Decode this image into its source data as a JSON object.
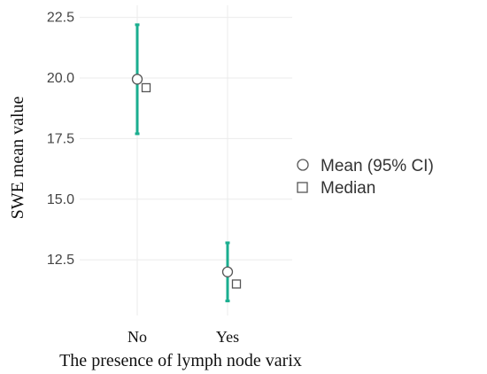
{
  "chart_data": {
    "type": "scatter",
    "xlabel": "The presence of lymph node varix",
    "ylabel": "SWE mean value",
    "categories": [
      "No",
      "Yes"
    ],
    "y_ticks": [
      "12.5",
      "15.0",
      "17.5",
      "20.0",
      "22.5"
    ],
    "ylim": [
      10.2,
      23.0
    ],
    "grid": true,
    "legend_position": "right",
    "series": [
      {
        "name": "Mean (95% CI)",
        "marker": "circle",
        "values": [
          19.95,
          12.0
        ],
        "ci_lower": [
          17.7,
          10.8
        ],
        "ci_upper": [
          22.2,
          13.2
        ]
      },
      {
        "name": "Median",
        "marker": "square",
        "values": [
          19.6,
          11.5
        ]
      }
    ],
    "colors": {
      "errorbar": "#1aae8f",
      "marker_stroke": "#555555",
      "marker_fill": "#ffffff",
      "grid": "#ebebeb"
    }
  }
}
